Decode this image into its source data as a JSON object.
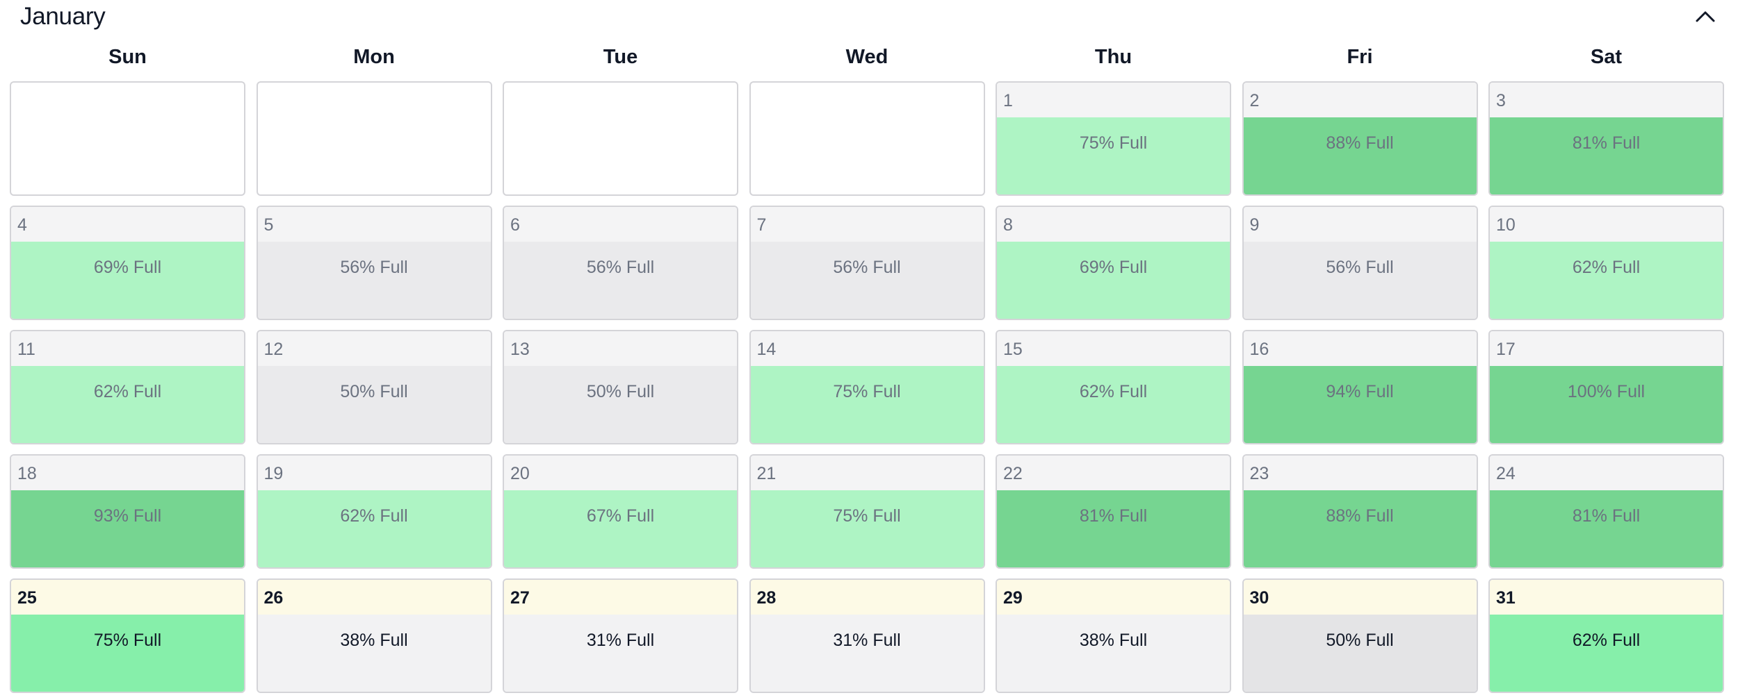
{
  "calendar": {
    "month": "January",
    "collapse_icon": "chevron-up-icon",
    "weekdays": [
      "Sun",
      "Mon",
      "Tue",
      "Wed",
      "Thu",
      "Fri",
      "Sat"
    ],
    "leading_blank_days": 4,
    "capacity_suffix": "% Full",
    "colors": {
      "past_low": "#eaeaec",
      "past_mid": "#aef4c4",
      "past_high": "#76d591",
      "future_low": "#f2f2f3",
      "future_mid": "#e4e4e6",
      "future_high": "#86efaa"
    },
    "days": [
      {
        "day": "1",
        "capacity": 75,
        "state": "past"
      },
      {
        "day": "2",
        "capacity": 88,
        "state": "past"
      },
      {
        "day": "3",
        "capacity": 81,
        "state": "past"
      },
      {
        "day": "4",
        "capacity": 69,
        "state": "past"
      },
      {
        "day": "5",
        "capacity": 56,
        "state": "past"
      },
      {
        "day": "6",
        "capacity": 56,
        "state": "past"
      },
      {
        "day": "7",
        "capacity": 56,
        "state": "past"
      },
      {
        "day": "8",
        "capacity": 69,
        "state": "past"
      },
      {
        "day": "9",
        "capacity": 56,
        "state": "past"
      },
      {
        "day": "10",
        "capacity": 62,
        "state": "past"
      },
      {
        "day": "11",
        "capacity": 62,
        "state": "past"
      },
      {
        "day": "12",
        "capacity": 50,
        "state": "past"
      },
      {
        "day": "13",
        "capacity": 50,
        "state": "past"
      },
      {
        "day": "14",
        "capacity": 75,
        "state": "past"
      },
      {
        "day": "15",
        "capacity": 62,
        "state": "past"
      },
      {
        "day": "16",
        "capacity": 94,
        "state": "past"
      },
      {
        "day": "17",
        "capacity": 100,
        "state": "past"
      },
      {
        "day": "18",
        "capacity": 93,
        "state": "past"
      },
      {
        "day": "19",
        "capacity": 62,
        "state": "past"
      },
      {
        "day": "20",
        "capacity": 67,
        "state": "past"
      },
      {
        "day": "21",
        "capacity": 75,
        "state": "past"
      },
      {
        "day": "22",
        "capacity": 81,
        "state": "past"
      },
      {
        "day": "23",
        "capacity": 88,
        "state": "past"
      },
      {
        "day": "24",
        "capacity": 81,
        "state": "past"
      },
      {
        "day": "25",
        "capacity": 75,
        "state": "future"
      },
      {
        "day": "26",
        "capacity": 38,
        "state": "future"
      },
      {
        "day": "27",
        "capacity": 31,
        "state": "future"
      },
      {
        "day": "28",
        "capacity": 31,
        "state": "future"
      },
      {
        "day": "29",
        "capacity": 38,
        "state": "future"
      },
      {
        "day": "30",
        "capacity": 50,
        "state": "future"
      },
      {
        "day": "31",
        "capacity": 62,
        "state": "future"
      }
    ]
  }
}
